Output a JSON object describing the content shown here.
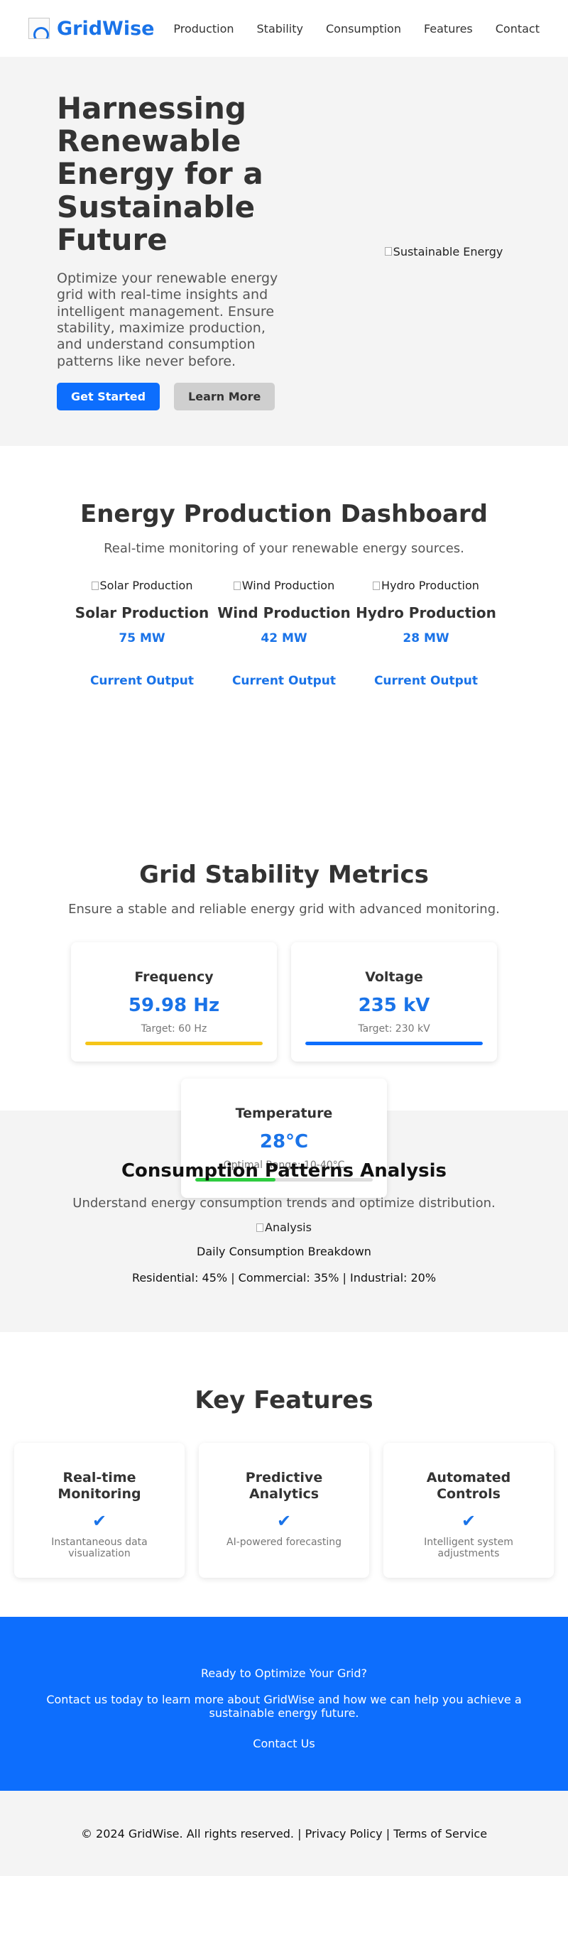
{
  "header": {
    "brand": "GridWise",
    "nav": [
      "Production",
      "Stability",
      "Consumption",
      "Features",
      "Contact"
    ]
  },
  "hero": {
    "title": "Harnessing Renewable Energy for a Sustainable Future",
    "description": "Optimize your renewable energy grid with real-time insights and intelligent management. Ensure stability, maximize production, and understand consumption patterns like never before.",
    "primary_button": "Get Started",
    "secondary_button": "Learn More",
    "image_alt": "Sustainable Energy"
  },
  "production": {
    "title": "Energy Production Dashboard",
    "subtitle": "Real-time monitoring of your renewable energy sources.",
    "items": [
      {
        "image_alt": "Solar Production",
        "name": "Solar Production",
        "value": "75 MW",
        "label": "Current Output"
      },
      {
        "image_alt": "Wind Production",
        "name": "Wind Production",
        "value": "42 MW",
        "label": "Current Output"
      },
      {
        "image_alt": "Hydro Production",
        "name": "Hydro Production",
        "value": "28 MW",
        "label": "Current Output"
      }
    ]
  },
  "stability": {
    "title": "Grid Stability Metrics",
    "subtitle": "Ensure a stable and reliable energy grid with advanced monitoring.",
    "metrics": [
      {
        "title": "Frequency",
        "value": "59.98 Hz",
        "target": "Target: 60 Hz",
        "level": 1.0,
        "color": "#f5c518"
      },
      {
        "title": "Voltage",
        "value": "235 kV",
        "target": "Target: 230 kV",
        "level": 1.0,
        "color": "#0d6efd"
      },
      {
        "title": "Temperature",
        "value": "28°C",
        "target": "Optimal Range: 10-40°C",
        "level": 0.45,
        "color": "#2ecc40"
      }
    ]
  },
  "consumption": {
    "title": "Consumption Patterns Analysis",
    "subtitle": "Understand energy consumption trends and optimize distribution.",
    "image_alt": "Analysis",
    "caption": "Daily Consumption Breakdown",
    "breakdown": "Residential: 45% | Commercial: 35% | Industrial: 20%"
  },
  "features": {
    "title": "Key Features",
    "items": [
      {
        "title": "Real-time Monitoring",
        "icon": "✔",
        "description": "Instantaneous data visualization"
      },
      {
        "title": "Predictive Analytics",
        "icon": "✔",
        "description": "AI-powered forecasting"
      },
      {
        "title": "Automated Controls",
        "icon": "✔",
        "description": "Intelligent system adjustments"
      }
    ]
  },
  "cta": {
    "title": "Ready to Optimize Your Grid?",
    "text": "Contact us today to learn more about GridWise and how we can help you achieve a sustainable energy future.",
    "link": "Contact Us"
  },
  "footer": {
    "copyright": "© 2024 GridWise. All rights reserved.",
    "separator": " | ",
    "privacy": "Privacy Policy",
    "terms": "Terms of Service"
  },
  "colors": {
    "accent": "#1a73e8",
    "primary_button": "#0d6efd",
    "cta_background": "#0d6efd"
  }
}
